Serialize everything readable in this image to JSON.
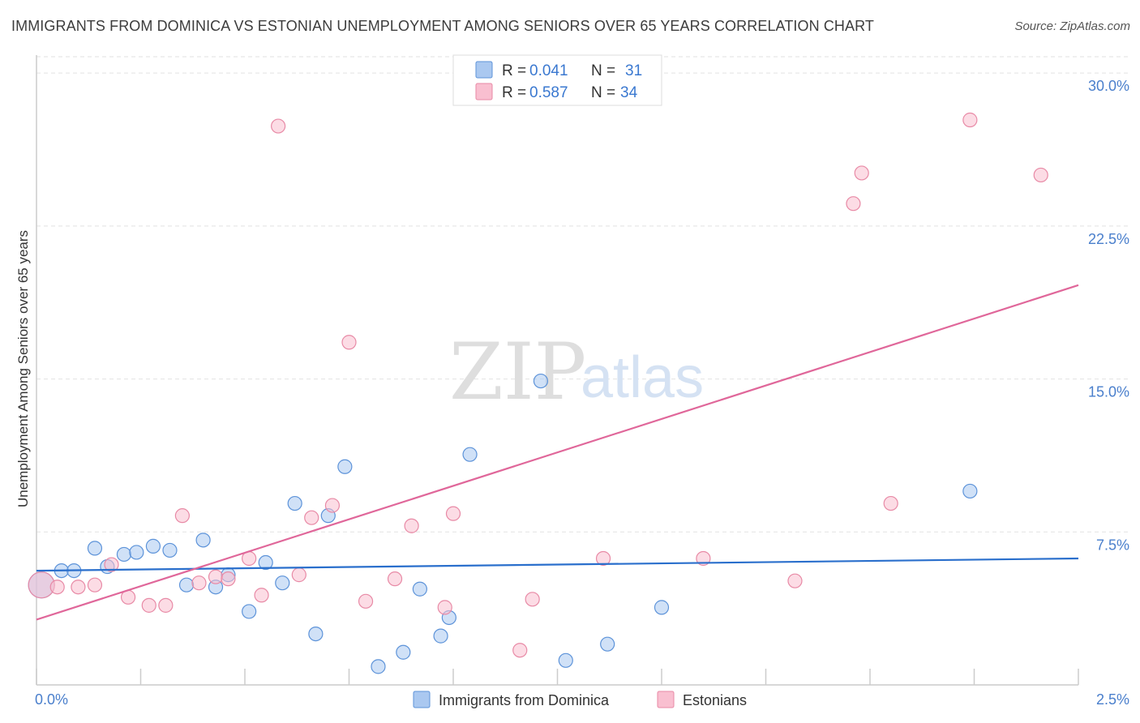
{
  "title": "IMMIGRANTS FROM DOMINICA VS ESTONIAN UNEMPLOYMENT AMONG SENIORS OVER 65 YEARS CORRELATION CHART",
  "source": "Source: ZipAtlas.com",
  "watermark": {
    "zip": "ZIP",
    "atlas": "atlas"
  },
  "legend": {
    "r_label": "R =",
    "n_label": "N =",
    "entries": [
      {
        "name": "Immigrants from Dominica",
        "r": "0.041",
        "n": "31",
        "color": "#aac8f0"
      },
      {
        "name": "Estonians",
        "r": "0.587",
        "n": "34",
        "color": "#f9bfd0"
      }
    ]
  },
  "chart_data": {
    "type": "scatter",
    "title": "IMMIGRANTS FROM DOMINICA VS ESTONIAN UNEMPLOYMENT AMONG SENIORS OVER 65 YEARS CORRELATION CHART",
    "xlabel": "",
    "ylabel": "Unemployment Among Seniors over 65 years",
    "xlim": [
      0,
      2.5
    ],
    "ylim": [
      0,
      30.8
    ],
    "x_ticks": [
      0,
      2.5
    ],
    "x_tick_labels": [
      "0.0%",
      "2.5%"
    ],
    "y_ticks": [
      7.5,
      15.0,
      22.5,
      30.0
    ],
    "y_tick_labels": [
      "7.5%",
      "15.0%",
      "22.5%",
      "30.0%"
    ],
    "grid": true,
    "series": [
      {
        "name": "Immigrants from Dominica",
        "color": "#aac8f0",
        "edge": "#5d93d9",
        "line_color": "#2a6fcc",
        "trend": {
          "x": [
            0,
            2.5
          ],
          "y": [
            5.6,
            6.2
          ]
        },
        "points": [
          {
            "x": 0.012,
            "y": 4.9,
            "big": true
          },
          {
            "x": 0.06,
            "y": 5.6
          },
          {
            "x": 0.09,
            "y": 5.6
          },
          {
            "x": 0.14,
            "y": 6.7
          },
          {
            "x": 0.17,
            "y": 5.8
          },
          {
            "x": 0.21,
            "y": 6.4
          },
          {
            "x": 0.24,
            "y": 6.5
          },
          {
            "x": 0.28,
            "y": 6.8
          },
          {
            "x": 0.32,
            "y": 6.6
          },
          {
            "x": 0.36,
            "y": 4.9
          },
          {
            "x": 0.4,
            "y": 7.1
          },
          {
            "x": 0.43,
            "y": 4.8
          },
          {
            "x": 0.46,
            "y": 5.4
          },
          {
            "x": 0.51,
            "y": 3.6
          },
          {
            "x": 0.55,
            "y": 6.0
          },
          {
            "x": 0.59,
            "y": 5.0
          },
          {
            "x": 0.62,
            "y": 8.9
          },
          {
            "x": 0.67,
            "y": 2.5
          },
          {
            "x": 0.7,
            "y": 8.3
          },
          {
            "x": 0.74,
            "y": 10.7
          },
          {
            "x": 0.82,
            "y": 0.9
          },
          {
            "x": 0.88,
            "y": 1.6
          },
          {
            "x": 0.92,
            "y": 4.7
          },
          {
            "x": 0.97,
            "y": 2.4
          },
          {
            "x": 0.99,
            "y": 3.3
          },
          {
            "x": 1.04,
            "y": 11.3
          },
          {
            "x": 1.21,
            "y": 14.9
          },
          {
            "x": 1.27,
            "y": 1.2
          },
          {
            "x": 1.37,
            "y": 2.0
          },
          {
            "x": 1.5,
            "y": 3.8
          },
          {
            "x": 2.24,
            "y": 9.5
          }
        ]
      },
      {
        "name": "Estonians",
        "color": "#f9bfd0",
        "edge": "#e88aa6",
        "line_color": "#e0679a",
        "trend": {
          "x": [
            0,
            2.5
          ],
          "y": [
            3.2,
            19.6
          ]
        },
        "points": [
          {
            "x": 0.012,
            "y": 4.9,
            "big": true
          },
          {
            "x": 0.05,
            "y": 4.8
          },
          {
            "x": 0.1,
            "y": 4.8
          },
          {
            "x": 0.14,
            "y": 4.9
          },
          {
            "x": 0.18,
            "y": 5.9
          },
          {
            "x": 0.22,
            "y": 4.3
          },
          {
            "x": 0.27,
            "y": 3.9
          },
          {
            "x": 0.31,
            "y": 3.9
          },
          {
            "x": 0.35,
            "y": 8.3
          },
          {
            "x": 0.39,
            "y": 5.0
          },
          {
            "x": 0.43,
            "y": 5.3
          },
          {
            "x": 0.46,
            "y": 5.2
          },
          {
            "x": 0.51,
            "y": 6.2
          },
          {
            "x": 0.54,
            "y": 4.4
          },
          {
            "x": 0.58,
            "y": 27.4
          },
          {
            "x": 0.63,
            "y": 5.4
          },
          {
            "x": 0.66,
            "y": 8.2
          },
          {
            "x": 0.71,
            "y": 8.8
          },
          {
            "x": 0.75,
            "y": 16.8
          },
          {
            "x": 0.79,
            "y": 4.1
          },
          {
            "x": 0.86,
            "y": 5.2
          },
          {
            "x": 0.9,
            "y": 7.8
          },
          {
            "x": 0.98,
            "y": 3.8
          },
          {
            "x": 1.0,
            "y": 8.4
          },
          {
            "x": 1.16,
            "y": 1.7
          },
          {
            "x": 1.19,
            "y": 4.2
          },
          {
            "x": 1.36,
            "y": 6.2
          },
          {
            "x": 1.6,
            "y": 6.2
          },
          {
            "x": 1.82,
            "y": 5.1
          },
          {
            "x": 1.96,
            "y": 23.6
          },
          {
            "x": 1.98,
            "y": 25.1
          },
          {
            "x": 2.05,
            "y": 8.9
          },
          {
            "x": 2.24,
            "y": 27.7
          },
          {
            "x": 2.41,
            "y": 25.0
          }
        ]
      }
    ]
  }
}
